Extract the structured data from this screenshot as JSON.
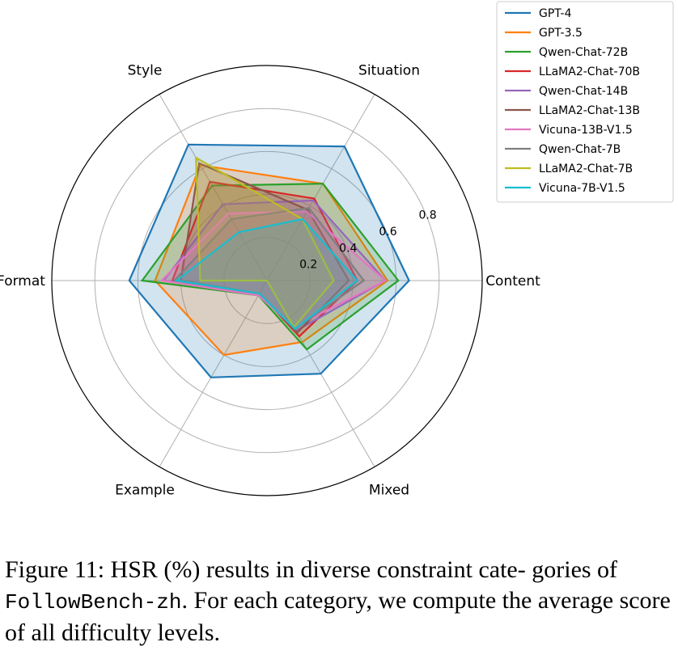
{
  "chart_data": {
    "type": "radar",
    "title": "",
    "categories": [
      "Content",
      "Situation",
      "Style",
      "Format",
      "Example",
      "Mixed"
    ],
    "rlim": [
      0,
      1.0
    ],
    "rticks": [
      0.2,
      0.4,
      0.6,
      0.8
    ],
    "rtick_labels": [
      "0.2",
      "0.4",
      "0.6",
      "0.8"
    ],
    "grid": true,
    "legend_position": "top-right",
    "series": [
      {
        "name": "GPT-4",
        "color": "#1f77b4",
        "values": [
          0.66,
          0.72,
          0.73,
          0.64,
          0.52,
          0.5
        ],
        "fill": true
      },
      {
        "name": "GPT-3.5",
        "color": "#ff7f0e",
        "values": [
          0.56,
          0.52,
          0.62,
          0.52,
          0.4,
          0.33
        ],
        "fill": true
      },
      {
        "name": "Qwen-Chat-72B",
        "color": "#2ca02c",
        "values": [
          0.61,
          0.52,
          0.51,
          0.58,
          0.08,
          0.37
        ],
        "fill": true
      },
      {
        "name": "LLaMA2-Chat-70B",
        "color": "#d62728",
        "values": [
          0.42,
          0.44,
          0.53,
          0.44,
          0.07,
          0.3
        ],
        "fill": true
      },
      {
        "name": "Qwen-Chat-14B",
        "color": "#9467bd",
        "values": [
          0.55,
          0.43,
          0.41,
          0.48,
          0.07,
          0.27
        ],
        "fill": true
      },
      {
        "name": "LLaMA2-Chat-13B",
        "color": "#8c564b",
        "values": [
          0.38,
          0.38,
          0.63,
          0.4,
          0.07,
          0.28
        ],
        "fill": true
      },
      {
        "name": "Vicuna-13B-V1.5",
        "color": "#e377c2",
        "values": [
          0.55,
          0.37,
          0.36,
          0.49,
          0.08,
          0.25
        ],
        "fill": true
      },
      {
        "name": "Qwen-Chat-7B",
        "color": "#7f7f7f",
        "values": [
          0.45,
          0.39,
          0.33,
          0.43,
          0.07,
          0.26
        ],
        "fill": true
      },
      {
        "name": "LLaMA2-Chat-7B",
        "color": "#bcbd22",
        "values": [
          0.31,
          0.33,
          0.66,
          0.31,
          0.0,
          0.25
        ],
        "fill": true
      },
      {
        "name": "Vicuna-7B-V1.5",
        "color": "#17becf",
        "values": [
          0.42,
          0.33,
          0.26,
          0.42,
          0.07,
          0.26
        ],
        "fill": true
      }
    ]
  },
  "caption": {
    "prefix": "Figure 11: HSR (%) results in diverse constraint cate- gories of ",
    "code": "FollowBench-zh",
    "suffix": ". For each category, we compute the average score of all difficulty levels."
  }
}
